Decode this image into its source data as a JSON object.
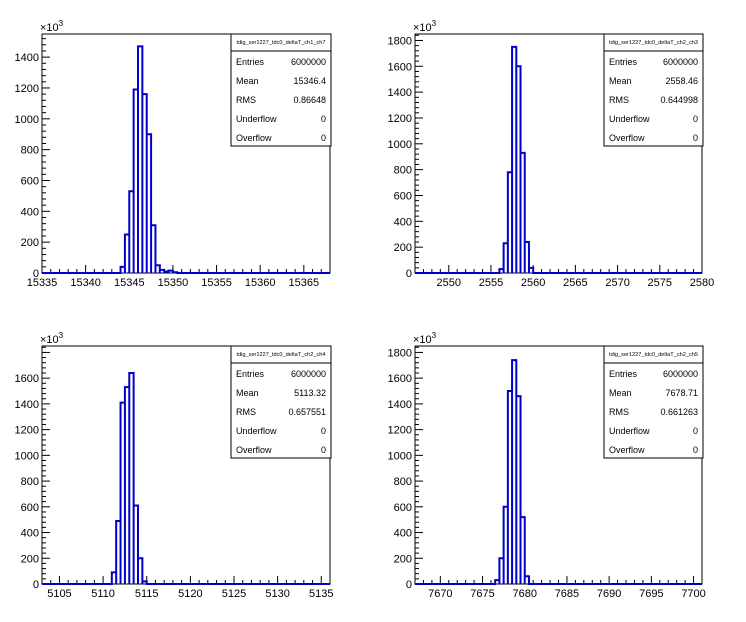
{
  "chart_data": [
    {
      "type": "histogram",
      "stats": {
        "title": "tdig_ser1227_tdc0_deltaT_ch1_ch7",
        "rows": [
          {
            "label": "Entries",
            "value": "6000000"
          },
          {
            "label": "Mean",
            "value": "15346.4"
          },
          {
            "label": "RMS",
            "value": "0.86648"
          },
          {
            "label": "Underflow",
            "value": "0"
          },
          {
            "label": "Overflow",
            "value": "0"
          }
        ]
      },
      "xlim": [
        15335,
        15368
      ],
      "ylim": [
        0,
        1550
      ],
      "x_ticks": [
        15335,
        15340,
        15345,
        15350,
        15355,
        15360,
        15365
      ],
      "y_ticks": [
        0,
        200,
        400,
        600,
        800,
        1000,
        1200,
        1400
      ],
      "multiplier": "×10",
      "multiplier_exp": "3",
      "bin_width": 0.5,
      "bins": [
        {
          "x": 15344.0,
          "y": 40
        },
        {
          "x": 15344.5,
          "y": 250
        },
        {
          "x": 15345.0,
          "y": 530
        },
        {
          "x": 15345.5,
          "y": 1190
        },
        {
          "x": 15346.0,
          "y": 1470
        },
        {
          "x": 15346.5,
          "y": 1160
        },
        {
          "x": 15347.0,
          "y": 900
        },
        {
          "x": 15347.5,
          "y": 310
        },
        {
          "x": 15348.0,
          "y": 50
        },
        {
          "x": 15348.5,
          "y": 20
        },
        {
          "x": 15349.0,
          "y": 10
        },
        {
          "x": 15349.5,
          "y": 15
        },
        {
          "x": 15350.0,
          "y": 5
        }
      ]
    },
    {
      "type": "histogram",
      "stats": {
        "title": "tdig_ser1227_tdc0_deltaT_ch2_ch3",
        "rows": [
          {
            "label": "Entries",
            "value": "6000000"
          },
          {
            "label": "Mean",
            "value": "2558.46"
          },
          {
            "label": "RMS",
            "value": "0.644998"
          },
          {
            "label": "Underflow",
            "value": "0"
          },
          {
            "label": "Overflow",
            "value": "0"
          }
        ]
      },
      "xlim": [
        2546,
        2580
      ],
      "ylim": [
        0,
        1850
      ],
      "x_ticks": [
        2550,
        2555,
        2560,
        2565,
        2570,
        2575,
        2580
      ],
      "y_ticks": [
        0,
        200,
        400,
        600,
        800,
        1000,
        1200,
        1400,
        1600,
        1800
      ],
      "multiplier": "×10",
      "multiplier_exp": "3",
      "bin_width": 0.5,
      "bins": [
        {
          "x": 2556.0,
          "y": 30
        },
        {
          "x": 2556.5,
          "y": 230
        },
        {
          "x": 2557.0,
          "y": 780
        },
        {
          "x": 2557.5,
          "y": 1750
        },
        {
          "x": 2558.0,
          "y": 1600
        },
        {
          "x": 2558.5,
          "y": 930
        },
        {
          "x": 2559.0,
          "y": 240
        },
        {
          "x": 2559.5,
          "y": 40
        }
      ]
    },
    {
      "type": "histogram",
      "stats": {
        "title": "tdig_ser1227_tdc0_deltaT_ch2_ch4",
        "rows": [
          {
            "label": "Entries",
            "value": "6000000"
          },
          {
            "label": "Mean",
            "value": "5113.32"
          },
          {
            "label": "RMS",
            "value": "0.657551"
          },
          {
            "label": "Underflow",
            "value": "0"
          },
          {
            "label": "Overflow",
            "value": "0"
          }
        ]
      },
      "xlim": [
        5103,
        5136
      ],
      "ylim": [
        0,
        1850
      ],
      "x_ticks": [
        5105,
        5110,
        5115,
        5120,
        5125,
        5130,
        5135
      ],
      "y_ticks": [
        0,
        200,
        400,
        600,
        800,
        1000,
        1200,
        1400,
        1600
      ],
      "multiplier": "×10",
      "multiplier_exp": "3",
      "bin_width": 0.5,
      "bins": [
        {
          "x": 5111.0,
          "y": 90
        },
        {
          "x": 5111.5,
          "y": 490
        },
        {
          "x": 5112.0,
          "y": 1410
        },
        {
          "x": 5112.5,
          "y": 1530
        },
        {
          "x": 5113.0,
          "y": 1640
        },
        {
          "x": 5113.5,
          "y": 610
        },
        {
          "x": 5114.0,
          "y": 200
        },
        {
          "x": 5114.5,
          "y": 20
        }
      ]
    },
    {
      "type": "histogram",
      "stats": {
        "title": "tdig_ser1227_tdc0_deltaT_ch2_ch5",
        "rows": [
          {
            "label": "Entries",
            "value": "6000000"
          },
          {
            "label": "Mean",
            "value": "7678.71"
          },
          {
            "label": "RMS",
            "value": "0.661263"
          },
          {
            "label": "Underflow",
            "value": "0"
          },
          {
            "label": "Overflow",
            "value": "0"
          }
        ]
      },
      "xlim": [
        7667,
        7701
      ],
      "ylim": [
        0,
        1850
      ],
      "x_ticks": [
        7670,
        7675,
        7680,
        7685,
        7690,
        7695,
        7700
      ],
      "y_ticks": [
        0,
        200,
        400,
        600,
        800,
        1000,
        1200,
        1400,
        1600,
        1800
      ],
      "multiplier": "×10",
      "multiplier_exp": "3",
      "bin_width": 0.5,
      "bins": [
        {
          "x": 7676.5,
          "y": 30
        },
        {
          "x": 7677.0,
          "y": 200
        },
        {
          "x": 7677.5,
          "y": 600
        },
        {
          "x": 7678.0,
          "y": 1500
        },
        {
          "x": 7678.5,
          "y": 1740
        },
        {
          "x": 7679.0,
          "y": 1460
        },
        {
          "x": 7679.5,
          "y": 520
        },
        {
          "x": 7680.0,
          "y": 60
        }
      ]
    }
  ],
  "colors": {
    "line": "#0000cc",
    "axis": "#000000",
    "background": "#ffffff"
  }
}
